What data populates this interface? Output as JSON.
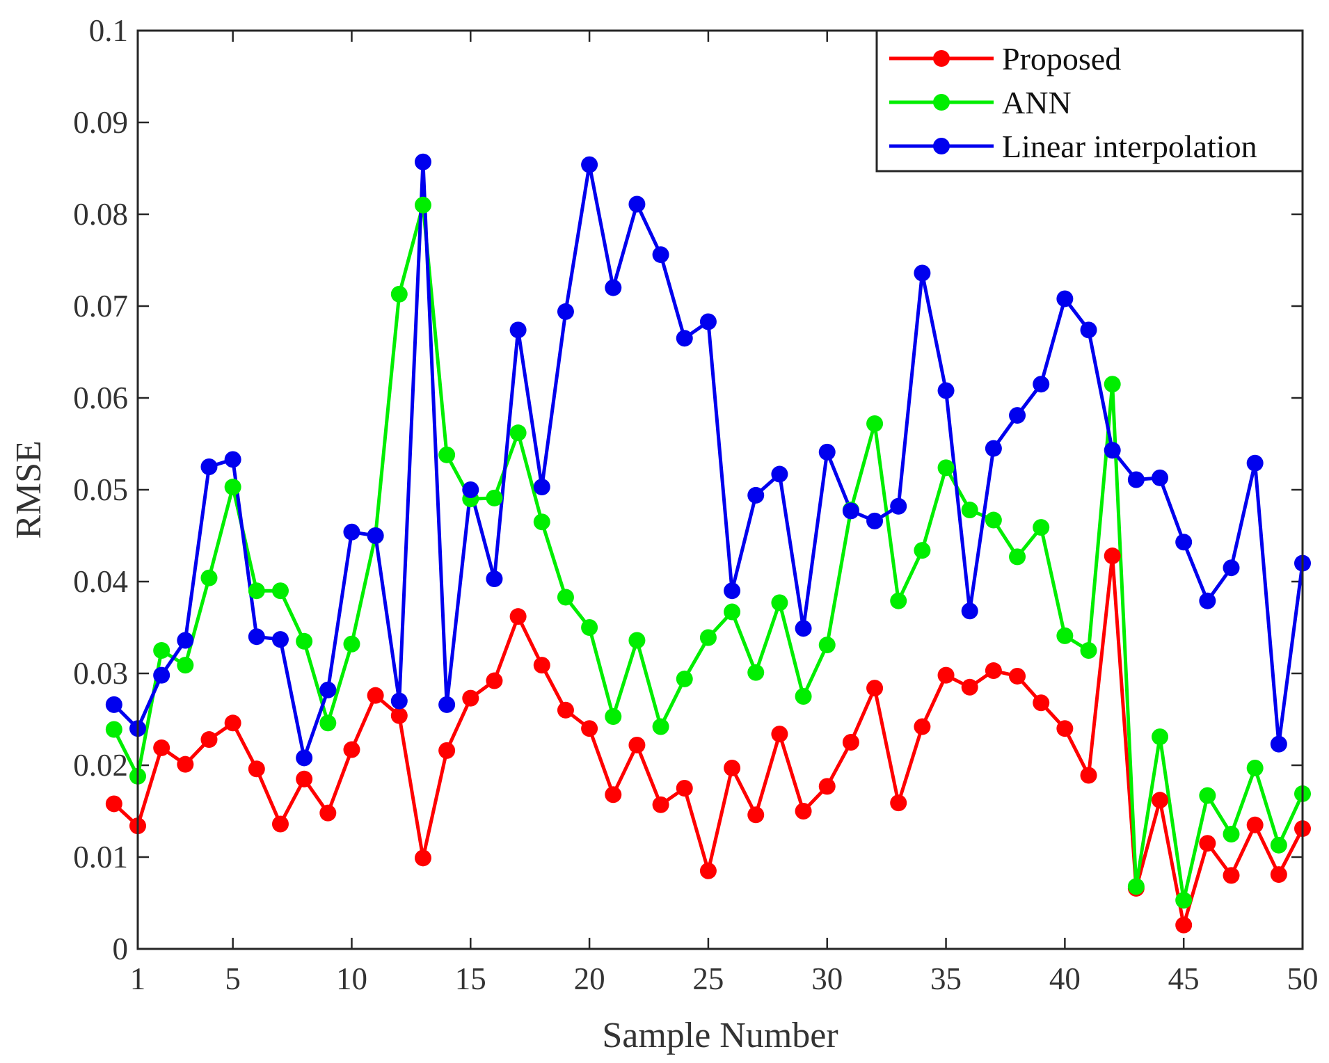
{
  "chart_data": {
    "type": "line",
    "title": "",
    "xlabel": "Sample Number",
    "ylabel": "RMSE",
    "xlim": [
      1,
      50
    ],
    "ylim": [
      0,
      0.1
    ],
    "x_ticks": [
      1,
      5,
      10,
      15,
      20,
      25,
      30,
      35,
      40,
      45,
      50
    ],
    "y_ticks": [
      0,
      0.01,
      0.02,
      0.03,
      0.04,
      0.05,
      0.06,
      0.07,
      0.08,
      0.09,
      0.1
    ],
    "x_tick_labels": [
      "1",
      "5",
      "10",
      "15",
      "20",
      "25",
      "30",
      "35",
      "40",
      "45",
      "50"
    ],
    "y_tick_labels": [
      "0",
      "0.01",
      "0.02",
      "0.03",
      "0.04",
      "0.05",
      "0.06",
      "0.07",
      "0.08",
      "0.09",
      "0.1"
    ],
    "legend_position": "top-right",
    "x": [
      0,
      1,
      2,
      3,
      4,
      5,
      6,
      7,
      8,
      9,
      10,
      11,
      12,
      13,
      14,
      15,
      16,
      17,
      18,
      19,
      20,
      21,
      22,
      23,
      24,
      25,
      26,
      27,
      28,
      29,
      30,
      31,
      32,
      33,
      34,
      35,
      36,
      37,
      38,
      39,
      40,
      41,
      42,
      43,
      44,
      45,
      46,
      47,
      48,
      49,
      50
    ],
    "series": [
      {
        "name": "Proposed",
        "color": "#ff0000",
        "values": [
          0.0158,
          0.0134,
          0.0219,
          0.0201,
          0.0228,
          0.0246,
          0.0196,
          0.0136,
          0.0185,
          0.0148,
          0.0217,
          0.0276,
          0.0254,
          0.0099,
          0.0216,
          0.0273,
          0.0292,
          0.0362,
          0.0309,
          0.026,
          0.024,
          0.0168,
          0.0222,
          0.0157,
          0.0175,
          0.0085,
          0.0197,
          0.0146,
          0.0234,
          0.015,
          0.0177,
          0.0225,
          0.0284,
          0.0159,
          0.0242,
          0.0298,
          0.0285,
          0.0303,
          0.0297,
          0.0268,
          0.024,
          0.0189,
          0.0428,
          0.0066,
          0.0162,
          0.0026,
          0.0115,
          0.008,
          0.0135,
          0.0081,
          0.0131
        ]
      },
      {
        "name": "ANN",
        "color": "#00ee00",
        "values": [
          0.0239,
          0.0188,
          0.0325,
          0.0309,
          0.0404,
          0.0503,
          0.039,
          0.039,
          0.0335,
          0.0246,
          0.0332,
          0.045,
          0.0713,
          0.081,
          0.0538,
          0.049,
          0.0491,
          0.0562,
          0.0465,
          0.0383,
          0.035,
          0.0253,
          0.0336,
          0.0242,
          0.0294,
          0.0339,
          0.0367,
          0.0301,
          0.0377,
          0.0275,
          0.0331,
          0.0478,
          0.0572,
          0.0379,
          0.0434,
          0.0524,
          0.0478,
          0.0467,
          0.0427,
          0.0459,
          0.0341,
          0.0325,
          0.0615,
          0.0068,
          0.0231,
          0.0053,
          0.0167,
          0.0125,
          0.0197,
          0.0113,
          0.0169
        ]
      },
      {
        "name": "Linear interpolation",
        "color": "#0000ee",
        "values": [
          0.0266,
          0.024,
          0.0298,
          0.0336,
          0.0525,
          0.0533,
          0.034,
          0.0337,
          0.0208,
          0.0282,
          0.0454,
          0.045,
          0.027,
          0.0857,
          0.0266,
          0.05,
          0.0403,
          0.0674,
          0.0503,
          0.0694,
          0.0854,
          0.072,
          0.0811,
          0.0756,
          0.0665,
          0.0683,
          0.039,
          0.0494,
          0.0517,
          0.0349,
          0.0541,
          0.0477,
          0.0466,
          0.0482,
          0.0736,
          0.0608,
          0.0368,
          0.0545,
          0.0581,
          0.0615,
          0.0708,
          0.0674,
          0.0543,
          0.0511,
          0.0513,
          0.0443,
          0.0379,
          0.0415,
          0.0529,
          0.0223,
          0.042
        ]
      }
    ]
  }
}
